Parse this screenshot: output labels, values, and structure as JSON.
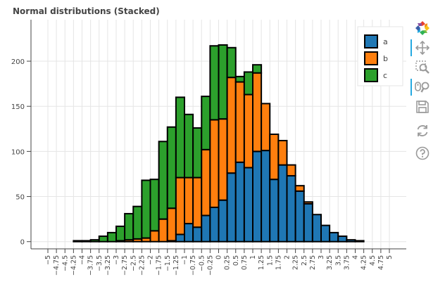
{
  "chart_data": {
    "type": "bar",
    "stacked": true,
    "title": "Normal distributions (Stacked)",
    "xlabel": "",
    "ylabel": "",
    "bin_edges": [
      -5,
      -4.75,
      -4.5,
      -4.25,
      -4,
      -3.75,
      -3.5,
      -3.25,
      -3,
      -2.75,
      -2.5,
      -2.25,
      -2,
      -1.75,
      -1.5,
      -1.25,
      -1,
      -0.75,
      -0.5,
      -0.25,
      0,
      0.25,
      0.5,
      0.75,
      1,
      1.25,
      1.5,
      1.75,
      2,
      2.25,
      2.5,
      2.75,
      3,
      3.25,
      3.5,
      3.75,
      4,
      4.25,
      4.5,
      4.75,
      5
    ],
    "x_tick_labels": [
      "−5",
      "−4.75",
      "−4.5",
      "−4.25",
      "−4",
      "−3.75",
      "−3.5",
      "−3.25",
      "−3",
      "−2.75",
      "−2.5",
      "−2.25",
      "−2",
      "−1.75",
      "−1.5",
      "−1.25",
      "−1",
      "−0.75",
      "−0.5",
      "−0.25",
      "0",
      "0.25",
      "0.5",
      "0.75",
      "1",
      "1.25",
      "1.5",
      "1.75",
      "2",
      "2.25",
      "2.5",
      "2.75",
      "3",
      "3.25",
      "3.5",
      "3.75",
      "4",
      "4.25",
      "4.5",
      "4.75",
      "5"
    ],
    "y_ticks": [
      0,
      50,
      100,
      150,
      200
    ],
    "xlim": [
      -5,
      5
    ],
    "ylim": [
      -8,
      246
    ],
    "grid": true,
    "legend_position": "top-right",
    "series": [
      {
        "name": "a",
        "color": "#1f77b4",
        "values": [
          0,
          0,
          0,
          0,
          0,
          0,
          0,
          0,
          0,
          0,
          0,
          0,
          0,
          0,
          1,
          8,
          20,
          16,
          29,
          38,
          46,
          76,
          88,
          82,
          100,
          101,
          69,
          85,
          73,
          56,
          42,
          30,
          18,
          10,
          6,
          2,
          1,
          0,
          0,
          0
        ]
      },
      {
        "name": "b",
        "color": "#ff7f0e",
        "values": [
          0,
          0,
          0,
          0,
          0,
          0,
          0,
          0,
          1,
          2,
          3,
          4,
          12,
          25,
          36,
          63,
          51,
          55,
          73,
          97,
          90,
          106,
          89,
          81,
          87,
          52,
          50,
          27,
          12,
          6,
          2,
          0,
          0,
          0,
          0,
          0,
          0,
          0,
          0,
          0
        ]
      },
      {
        "name": "c",
        "color": "#2ca02c",
        "values": [
          0,
          0,
          0,
          1,
          1,
          2,
          6,
          10,
          16,
          29,
          36,
          64,
          57,
          86,
          90,
          89,
          70,
          55,
          59,
          82,
          82,
          33,
          6,
          25,
          9,
          0,
          0,
          0,
          0,
          0,
          0,
          0,
          0,
          0,
          0,
          0,
          0,
          0,
          0,
          0
        ]
      }
    ]
  },
  "toolbar": {
    "tools": [
      {
        "name": "bokeh-logo",
        "icon": "bokeh-logo-icon",
        "interactable": true,
        "active": false
      },
      {
        "name": "pan-tool",
        "icon": "pan-icon",
        "interactable": true,
        "active": true
      },
      {
        "name": "box-zoom-tool",
        "icon": "box-zoom-icon",
        "interactable": true,
        "active": false
      },
      {
        "name": "wheel-zoom-tool",
        "icon": "wheel-zoom-icon",
        "interactable": true,
        "active": true
      },
      {
        "name": "save-tool",
        "icon": "save-icon",
        "interactable": true,
        "active": false
      },
      {
        "name": "reset-tool",
        "icon": "reset-icon",
        "interactable": true,
        "active": false
      },
      {
        "name": "help-tool",
        "icon": "help-icon",
        "interactable": true,
        "active": false
      }
    ]
  }
}
